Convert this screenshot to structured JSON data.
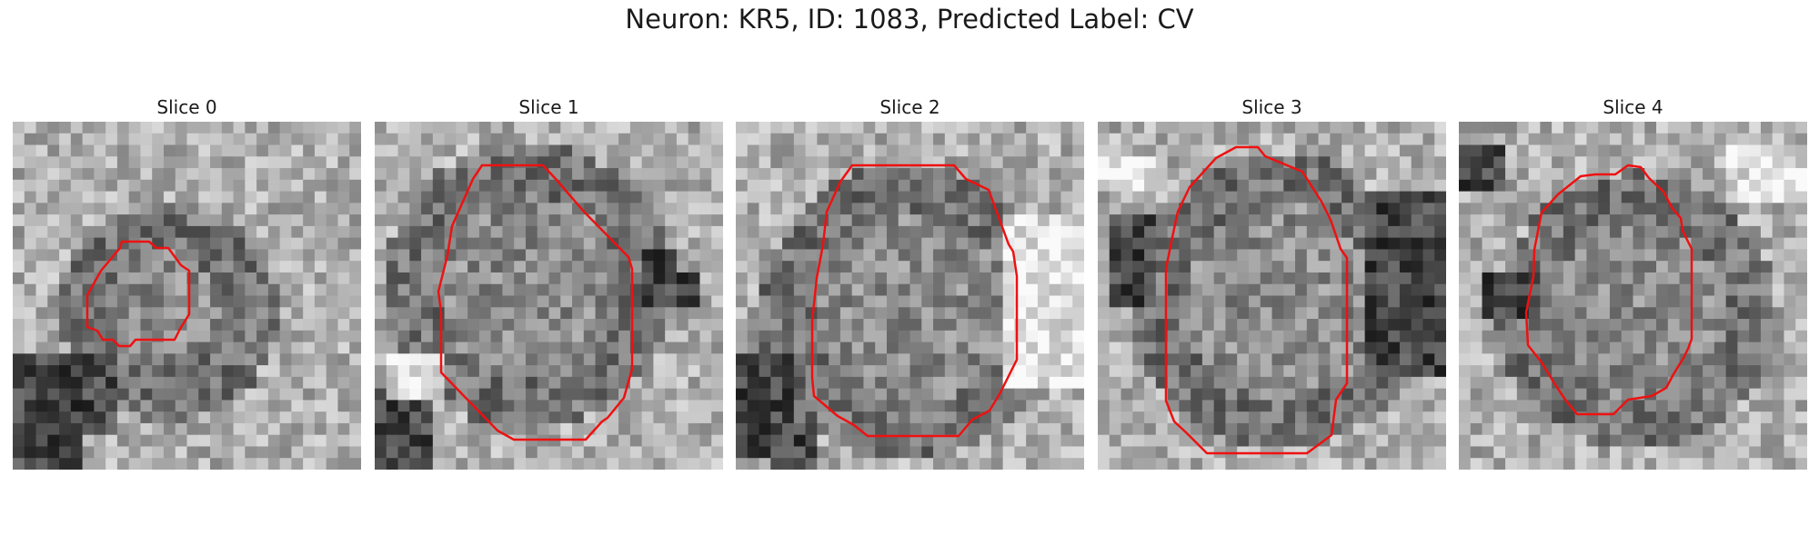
{
  "figure": {
    "title": "Neuron: KR5, ID: 1083, Predicted Label: CV",
    "colormap": "gray",
    "contour_color": "#ee1111"
  },
  "slices": [
    {
      "label": "Slice 0"
    },
    {
      "label": "Slice 1"
    },
    {
      "label": "Slice 2"
    },
    {
      "label": "Slice 3"
    },
    {
      "label": "Slice 4"
    }
  ]
}
